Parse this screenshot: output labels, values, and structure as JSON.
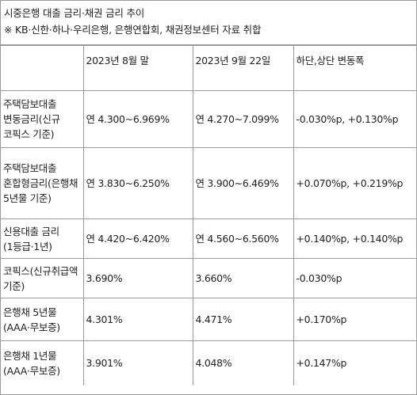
{
  "header": {
    "title": "시중은행 대출 금리·채권 금리 추이",
    "source": "※ KB·신한·하나·우리은행, 은행연합회, 채권정보센터 자료 취합"
  },
  "table": {
    "columns": [
      "",
      "2023년 8월 말",
      "2023년 9월 22일",
      "하단,상단 변동폭"
    ],
    "rows": [
      {
        "label": "주택담보대출 변동금리(신규 코픽스 기준)",
        "aug": "연 4.300~6.969%",
        "sep": "연 4.270~7.099%",
        "change": "-0.030%p, +0.130%p"
      },
      {
        "label": "주택담보대출 혼합형금리(은행채 5년물 기준)",
        "aug": "연 3.830~6.250%",
        "sep": "연 3.900~6.469%",
        "change": "+0.070%p, +0.219%p"
      },
      {
        "label": "신용대출 금리(1등급·1년)",
        "aug": "연 4.420~6.420%",
        "sep": "연 4.560~6.560%",
        "change": "+0.140%p, +0.140%p"
      },
      {
        "label": "코픽스(신규취급액 기준)",
        "aug": "3.690%",
        "sep": "3.660%",
        "change": "-0.030%p"
      },
      {
        "label": "은행채 5년물(AAA·무보증)",
        "aug": "4.301%",
        "sep": "4.471%",
        "change": "+0.170%p"
      },
      {
        "label": "은행채 1년물(AAA·무보증)",
        "aug": "3.901%",
        "sep": "4.048%",
        "change": "+0.147%p"
      }
    ]
  }
}
